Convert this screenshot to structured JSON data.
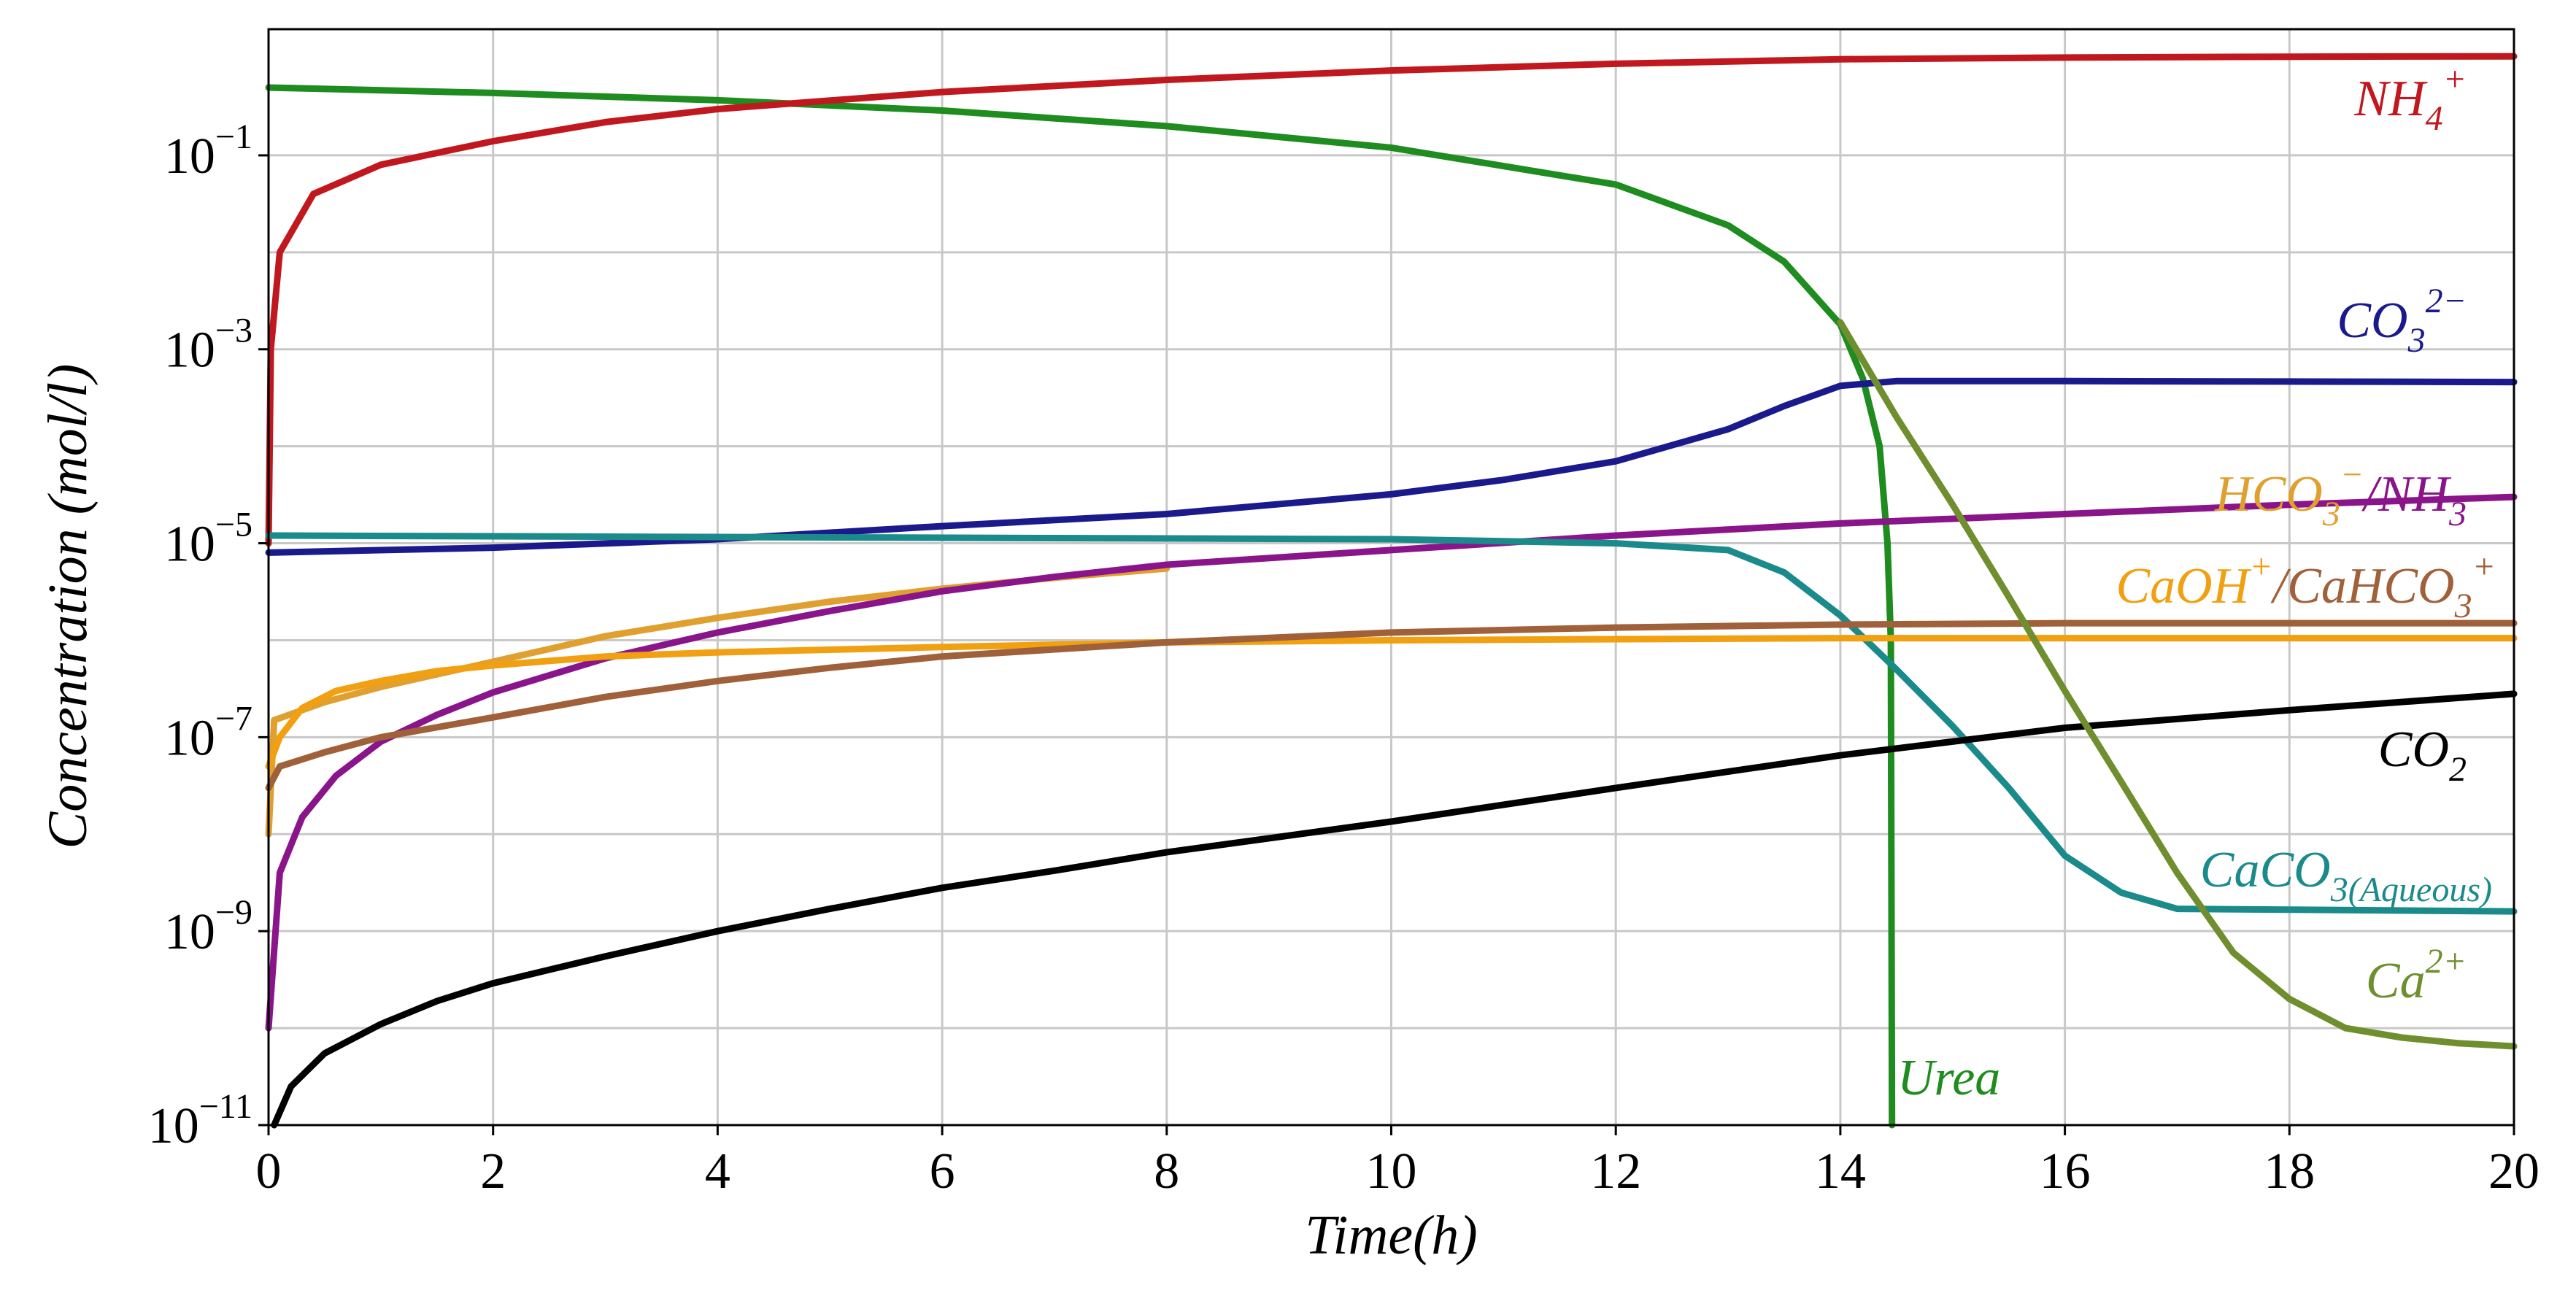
{
  "chart_data": {
    "type": "line",
    "xlabel": "Time(h)",
    "ylabel": "Concentration (mol/l)",
    "xlim": [
      0,
      20
    ],
    "ylim": [
      1e-11,
      2
    ],
    "yscale": "log",
    "grid": true,
    "x_ticks": [
      {
        "value": 0,
        "label": "0"
      },
      {
        "value": 2,
        "label": "2"
      },
      {
        "value": 4,
        "label": "4"
      },
      {
        "value": 6,
        "label": "6"
      },
      {
        "value": 8,
        "label": "8"
      },
      {
        "value": 10,
        "label": "10"
      },
      {
        "value": 12,
        "label": "12"
      },
      {
        "value": 14,
        "label": "14"
      },
      {
        "value": 16,
        "label": "16"
      },
      {
        "value": 18,
        "label": "18"
      },
      {
        "value": 20,
        "label": "20"
      }
    ],
    "y_ticks": [
      {
        "value": 0.1,
        "base": "10",
        "exp": "−1"
      },
      {
        "value": 0.001,
        "base": "10",
        "exp": "−3"
      },
      {
        "value": 1e-05,
        "base": "10",
        "exp": "−5"
      },
      {
        "value": 1e-07,
        "base": "10",
        "exp": "−7"
      },
      {
        "value": 1e-09,
        "base": "10",
        "exp": "−9"
      },
      {
        "value": 1e-11,
        "base": "10",
        "exp": "−11"
      }
    ],
    "y_grid_values": [
      0.1,
      0.01,
      0.001,
      0.0001,
      1e-05,
      1e-06,
      1e-07,
      1e-08,
      1e-09,
      1e-10
    ],
    "series": [
      {
        "name": "Urea",
        "color": "#1e8c1e",
        "points": [
          [
            0,
            0.5
          ],
          [
            2,
            0.44
          ],
          [
            4,
            0.37
          ],
          [
            6,
            0.29
          ],
          [
            8,
            0.2
          ],
          [
            10,
            0.12
          ],
          [
            12,
            0.05
          ],
          [
            13,
            0.019
          ],
          [
            13.5,
            0.008
          ],
          [
            14,
            0.0018
          ],
          [
            14.2,
            0.0005
          ],
          [
            14.35,
            0.0001
          ],
          [
            14.42,
            1e-05
          ],
          [
            14.45,
            1e-06
          ],
          [
            14.46,
            1e-11
          ]
        ]
      },
      {
        "name": "NH4+",
        "color": "#c0181e",
        "points": [
          [
            0,
            1e-05
          ],
          [
            0.02,
            0.001
          ],
          [
            0.1,
            0.01
          ],
          [
            0.4,
            0.04
          ],
          [
            1,
            0.08
          ],
          [
            2,
            0.14
          ],
          [
            3,
            0.22
          ],
          [
            4,
            0.3
          ],
          [
            6,
            0.45
          ],
          [
            8,
            0.6
          ],
          [
            10,
            0.75
          ],
          [
            12,
            0.88
          ],
          [
            14,
            0.98
          ],
          [
            16,
            1.02
          ],
          [
            18,
            1.04
          ],
          [
            20,
            1.05
          ]
        ]
      },
      {
        "name": "CO3 2-",
        "color": "#1a1a8c",
        "points": [
          [
            0,
            8e-06
          ],
          [
            2,
            9e-06
          ],
          [
            4,
            1.1e-05
          ],
          [
            6,
            1.5e-05
          ],
          [
            8,
            2e-05
          ],
          [
            10,
            3.2e-05
          ],
          [
            11,
            4.5e-05
          ],
          [
            12,
            7e-05
          ],
          [
            13,
            0.00015
          ],
          [
            13.5,
            0.00026
          ],
          [
            14,
            0.00042
          ],
          [
            14.5,
            0.00047
          ],
          [
            16,
            0.00047
          ],
          [
            18,
            0.000465
          ],
          [
            20,
            0.00046
          ]
        ]
      },
      {
        "name": "HCO3-",
        "color": "#e0a030",
        "points": [
          [
            0,
            1e-08
          ],
          [
            0.05,
            1.5e-07
          ],
          [
            0.5,
            2.3e-07
          ],
          [
            1,
            3.3e-07
          ],
          [
            2,
            6e-07
          ],
          [
            3,
            1.1e-06
          ],
          [
            4,
            1.7e-06
          ],
          [
            5,
            2.5e-06
          ],
          [
            6,
            3.4e-06
          ],
          [
            7,
            4.4e-06
          ],
          [
            8,
            5.5e-06
          ]
        ]
      },
      {
        "name": "NH3",
        "color": "#8a158a",
        "points": [
          [
            0,
            1e-10
          ],
          [
            0.1,
            4e-09
          ],
          [
            0.3,
            1.5e-08
          ],
          [
            0.6,
            4e-08
          ],
          [
            1,
            9e-08
          ],
          [
            1.5,
            1.7e-07
          ],
          [
            2,
            2.9e-07
          ],
          [
            3,
            6.5e-07
          ],
          [
            4,
            1.2e-06
          ],
          [
            5,
            2e-06
          ],
          [
            6,
            3.2e-06
          ],
          [
            7,
            4.5e-06
          ],
          [
            8,
            6e-06
          ],
          [
            10,
            8.5e-06
          ],
          [
            12,
            1.2e-05
          ],
          [
            14,
            1.6e-05
          ],
          [
            16,
            2e-05
          ],
          [
            18,
            2.5e-05
          ],
          [
            20,
            3e-05
          ]
        ]
      },
      {
        "name": "CaCO3(Aqueous)",
        "color": "#1a8a8a",
        "points": [
          [
            0,
            1.2e-05
          ],
          [
            10,
            1.1e-05
          ],
          [
            12,
            1e-05
          ],
          [
            13,
            8.5e-06
          ],
          [
            13.5,
            5e-06
          ],
          [
            14,
            1.8e-06
          ],
          [
            14.5,
            5e-07
          ],
          [
            15,
            1.3e-07
          ],
          [
            15.5,
            3e-08
          ],
          [
            16,
            6e-09
          ],
          [
            16.5,
            2.5e-09
          ],
          [
            17,
            1.7e-09
          ],
          [
            20,
            1.6e-09
          ]
        ]
      },
      {
        "name": "CaOH+",
        "color": "#f0a010",
        "points": [
          [
            0,
            5e-08
          ],
          [
            0.1,
            1e-07
          ],
          [
            0.3,
            2e-07
          ],
          [
            0.6,
            3e-07
          ],
          [
            1,
            3.8e-07
          ],
          [
            1.5,
            4.8e-07
          ],
          [
            2,
            5.5e-07
          ],
          [
            3,
            6.8e-07
          ],
          [
            4,
            7.5e-07
          ],
          [
            6,
            8.5e-07
          ],
          [
            8,
            9.5e-07
          ],
          [
            10,
            1e-06
          ],
          [
            14,
            1.05e-06
          ],
          [
            20,
            1.05e-06
          ]
        ]
      },
      {
        "name": "CaHCO3+",
        "color": "#a0603a",
        "points": [
          [
            0,
            3e-08
          ],
          [
            0.1,
            5e-08
          ],
          [
            0.5,
            7e-08
          ],
          [
            1,
            1e-07
          ],
          [
            2,
            1.6e-07
          ],
          [
            3,
            2.6e-07
          ],
          [
            4,
            3.8e-07
          ],
          [
            5,
            5.2e-07
          ],
          [
            6,
            6.8e-07
          ],
          [
            8,
            9.5e-07
          ],
          [
            10,
            1.2e-06
          ],
          [
            12,
            1.35e-06
          ],
          [
            14,
            1.45e-06
          ],
          [
            16,
            1.5e-06
          ],
          [
            20,
            1.5e-06
          ]
        ]
      },
      {
        "name": "CO2",
        "color": "#000000",
        "points": [
          [
            0.05,
            1e-11
          ],
          [
            0.2,
            2.5e-11
          ],
          [
            0.5,
            5.5e-11
          ],
          [
            1,
            1.1e-10
          ],
          [
            1.5,
            1.9e-10
          ],
          [
            2,
            2.9e-10
          ],
          [
            3,
            5.5e-10
          ],
          [
            4,
            1e-09
          ],
          [
            5,
            1.7e-09
          ],
          [
            6,
            2.8e-09
          ],
          [
            7,
            4.2e-09
          ],
          [
            8,
            6.5e-09
          ],
          [
            10,
            1.35e-08
          ],
          [
            12,
            3e-08
          ],
          [
            14,
            6.5e-08
          ],
          [
            16,
            1.25e-07
          ],
          [
            18,
            1.9e-07
          ],
          [
            20,
            2.8e-07
          ]
        ]
      },
      {
        "name": "Ca2+",
        "color": "#6f8f2f",
        "points": [
          [
            14,
            0.0019
          ],
          [
            14.5,
            0.0002
          ],
          [
            15,
            2.5e-05
          ],
          [
            15.5,
            2.8e-06
          ],
          [
            16,
            3e-07
          ],
          [
            16.5,
            3.5e-08
          ],
          [
            17,
            4e-09
          ],
          [
            17.5,
            6e-10
          ],
          [
            18,
            2e-10
          ],
          [
            18.5,
            1e-10
          ],
          [
            19,
            8e-11
          ],
          [
            19.5,
            7e-11
          ],
          [
            20,
            6.5e-11
          ]
        ]
      }
    ],
    "labels": [
      {
        "key": "nh4",
        "parts": [
          {
            "t": "NH",
            "c": "#c0181e"
          },
          {
            "t": "4",
            "sub": true,
            "c": "#c0181e"
          },
          {
            "t": "+",
            "sup": true,
            "c": "#c0181e"
          }
        ]
      },
      {
        "key": "co3",
        "parts": [
          {
            "t": "CO",
            "c": "#1a1a8c"
          },
          {
            "t": "3",
            "sub": true,
            "c": "#1a1a8c"
          },
          {
            "t": "2−",
            "sup": true,
            "c": "#1a1a8c"
          }
        ]
      },
      {
        "key": "hco3nh3",
        "parts": [
          {
            "t": "HCO",
            "c": "#e0a030"
          },
          {
            "t": "3",
            "sub": true,
            "c": "#e0a030"
          },
          {
            "t": "−",
            "sup": true,
            "c": "#e0a030"
          },
          {
            "t": "/",
            "c": "#8a158a"
          },
          {
            "t": "NH",
            "c": "#8a158a"
          },
          {
            "t": "3",
            "sub": true,
            "c": "#8a158a"
          }
        ]
      },
      {
        "key": "caoh",
        "parts": [
          {
            "t": "CaOH",
            "c": "#f0a010"
          },
          {
            "t": "+",
            "sup": true,
            "c": "#f0a010"
          },
          {
            "t": "/",
            "c": "#a0603a"
          },
          {
            "t": "CaHCO",
            "c": "#a0603a"
          },
          {
            "t": "3",
            "sub": true,
            "c": "#a0603a"
          },
          {
            "t": "+",
            "sup": true,
            "c": "#a0603a"
          }
        ]
      },
      {
        "key": "co2",
        "parts": [
          {
            "t": "CO",
            "c": "#000000"
          },
          {
            "t": "2",
            "sub": true,
            "c": "#000000"
          }
        ]
      },
      {
        "key": "caco3",
        "parts": [
          {
            "t": "CaCO",
            "c": "#1a8a8a"
          },
          {
            "t": "3(Aqueous)",
            "sub": true,
            "c": "#1a8a8a"
          }
        ]
      },
      {
        "key": "ca",
        "parts": [
          {
            "t": "Ca",
            "c": "#6f8f2f"
          },
          {
            "t": "2+",
            "sup": true,
            "c": "#6f8f2f"
          }
        ]
      },
      {
        "key": "urea",
        "parts": [
          {
            "t": "Urea",
            "c": "#1e8c1e"
          }
        ]
      }
    ]
  }
}
